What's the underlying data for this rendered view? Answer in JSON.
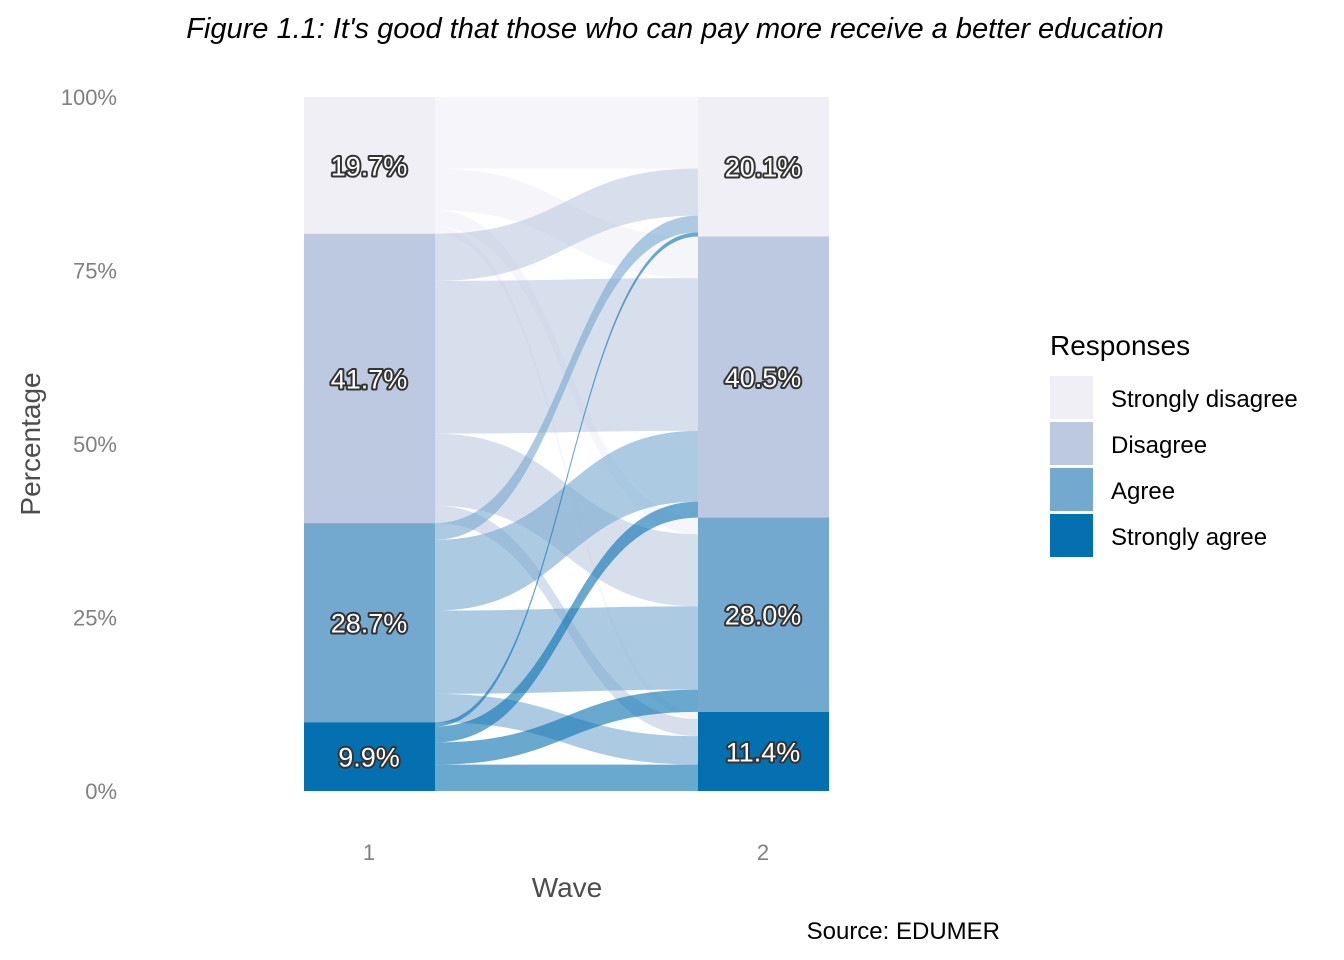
{
  "chart_data": {
    "type": "alluvial",
    "title": "Figure 1.1: It's good that those who can pay more receive a better education",
    "xlabel": "Wave",
    "ylabel": "Percentage",
    "caption": "Source: EDUMER",
    "legend_title": "Responses",
    "legend_position": "right",
    "ylim": [
      0,
      100
    ],
    "y_ticks": [
      {
        "value": 0,
        "label": "0%"
      },
      {
        "value": 25,
        "label": "25%"
      },
      {
        "value": 50,
        "label": "50%"
      },
      {
        "value": 75,
        "label": "75%"
      },
      {
        "value": 100,
        "label": "100%"
      }
    ],
    "categories": [
      "Strongly disagree",
      "Disagree",
      "Agree",
      "Strongly agree"
    ],
    "colors": {
      "Strongly disagree": "#f0eff6",
      "Disagree": "#bdc9e1",
      "Agree": "#74a9cf",
      "Strongly agree": "#0570b0"
    },
    "waves": [
      {
        "label": "1",
        "values": [
          19.7,
          41.7,
          28.7,
          9.9
        ],
        "labels": [
          "19.7%",
          "41.7%",
          "28.7%",
          "9.9%"
        ]
      },
      {
        "label": "2",
        "values": [
          20.1,
          40.5,
          28.0,
          11.4
        ],
        "labels": [
          "20.1%",
          "40.5%",
          "28.0%",
          "11.4%"
        ]
      }
    ],
    "flows": [
      {
        "from": "Strongly disagree",
        "to": "Strongly disagree",
        "value": 10.3
      },
      {
        "from": "Strongly disagree",
        "to": "Disagree",
        "value": 6.0
      },
      {
        "from": "Strongly disagree",
        "to": "Agree",
        "value": 2.4
      },
      {
        "from": "Strongly disagree",
        "to": "Strongly agree",
        "value": 1.0
      },
      {
        "from": "Disagree",
        "to": "Strongly disagree",
        "value": 6.8
      },
      {
        "from": "Disagree",
        "to": "Disagree",
        "value": 22.0
      },
      {
        "from": "Disagree",
        "to": "Agree",
        "value": 10.4
      },
      {
        "from": "Disagree",
        "to": "Strongly agree",
        "value": 2.5
      },
      {
        "from": "Agree",
        "to": "Strongly disagree",
        "value": 2.4
      },
      {
        "from": "Agree",
        "to": "Disagree",
        "value": 10.2
      },
      {
        "from": "Agree",
        "to": "Agree",
        "value": 12.0
      },
      {
        "from": "Agree",
        "to": "Strongly agree",
        "value": 4.1
      },
      {
        "from": "Strongly agree",
        "to": "Strongly disagree",
        "value": 0.6
      },
      {
        "from": "Strongly agree",
        "to": "Disagree",
        "value": 2.3
      },
      {
        "from": "Strongly agree",
        "to": "Agree",
        "value": 3.2
      },
      {
        "from": "Strongly agree",
        "to": "Strongly agree",
        "value": 3.8
      }
    ]
  }
}
